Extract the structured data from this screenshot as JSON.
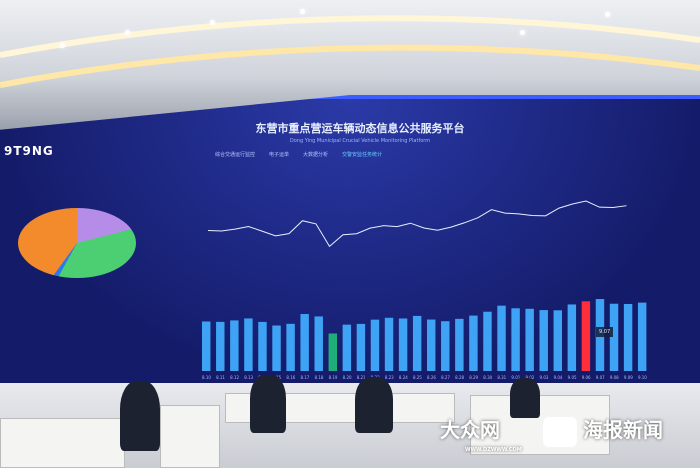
{
  "screen": {
    "logo": "9T9NG",
    "title": "东营市重点营运车辆动态信息公共服务平台",
    "subtitle": "Dong Ying Municipal Crucial Vehicle Monitoring Platform",
    "tabs": [
      "综合交通运行监控",
      "电子运单",
      "大数据分析",
      "交警安监任务统计"
    ],
    "tooltip": "9.07",
    "bar_dates": [
      "8.10",
      "8.11",
      "8.12",
      "8.13",
      "8.14",
      "8.15",
      "8.16",
      "8.17",
      "8.18",
      "8.19",
      "8.20",
      "8.21",
      "8.22",
      "8.23",
      "8.24",
      "8.25",
      "8.26",
      "8.27",
      "8.28",
      "8.29",
      "8.30",
      "8.31",
      "9.01",
      "9.02",
      "9.03",
      "9.04",
      "9.05",
      "9.06",
      "9.07",
      "9.08",
      "9.09",
      "9.10"
    ],
    "bar_values": [
      7618,
      7560,
      7785,
      8087,
      7552,
      6999,
      7257,
      8766,
      8393,
      5771,
      7130,
      7244,
      7903,
      8187,
      8080,
      8475,
      7918,
      7659,
      8023,
      8525,
      9120,
      10052,
      9650,
      9570,
      9375,
      9337,
      10238,
      10720,
      11068,
      10350,
      10311,
      10520
    ],
    "highlight": {
      "green_index": 9,
      "red_index": 27
    },
    "colors": {
      "bar": "#3fa3f5",
      "green": "#1fae7a",
      "red": "#ff2e3a",
      "line": "#e8f0ff"
    }
  },
  "watermarks": {
    "dzwww": "大众网",
    "dzwww_url": "WWW.DZWWW.COM",
    "haibao": "海报新闻"
  }
}
